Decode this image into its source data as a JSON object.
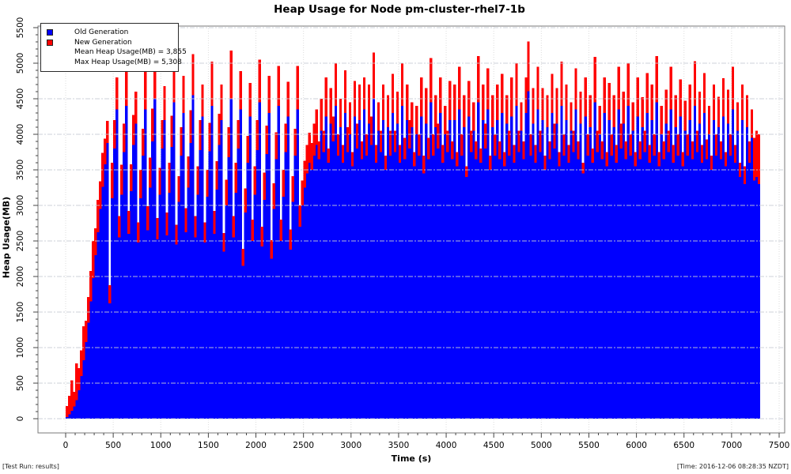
{
  "title": "Heap Usage for Node pm-cluster-rhel7-1b",
  "footer": {
    "left": "[Test Run: results]",
    "right": "[Time: 2016-12-06 08:28:35 NZDT]"
  },
  "legend": {
    "items": [
      {
        "label": "Old Generation",
        "color": "#0000ff"
      },
      {
        "label": "New Generation",
        "color": "#ff0000"
      }
    ],
    "stats": [
      "Mean Heap Usage(MB) = 3,855",
      "Max Heap Usage(MB) = 5,308"
    ]
  },
  "chart_data": {
    "type": "bar",
    "stacked": true,
    "title": "Heap Usage for Node pm-cluster-rhel7-1b",
    "xlabel": "Time (s)",
    "ylabel": "Heap Usage(MB)",
    "xlim": [
      0,
      7500
    ],
    "ylim": [
      0,
      5500
    ],
    "x_tick_major": 500,
    "x_tick_minor": 100,
    "y_tick_major": 500,
    "y_tick_minor": 100,
    "grid": true,
    "legend_position": "top-left",
    "mean_heap_mb": 3855,
    "max_heap_mb": 5308,
    "x_start": 0,
    "x_step": 25,
    "series": [
      {
        "name": "Old Generation",
        "color": "#0000ff",
        "values": [
          20,
          60,
          110,
          170,
          260,
          400,
          600,
          820,
          1080,
          1350,
          1650,
          1980,
          2300,
          2620,
          2950,
          3260,
          3580,
          3880,
          1620,
          3100,
          3800,
          4350,
          2550,
          3150,
          3750,
          4400,
          2600,
          3200,
          3850,
          4150,
          2480,
          3100,
          3700,
          4350,
          2650,
          3250,
          3900,
          4500,
          2520,
          3150,
          3800,
          4200,
          2580,
          3180,
          3820,
          4450,
          2450,
          3050,
          3700,
          4300,
          2620,
          3250,
          3880,
          4550,
          2550,
          3150,
          3780,
          4250,
          2480,
          3120,
          3760,
          4400,
          2600,
          3220,
          3850,
          4200,
          2350,
          3000,
          3680,
          4500,
          2550,
          3180,
          3800,
          4350,
          2150,
          2900,
          3600,
          4250,
          2500,
          3150,
          3780,
          4450,
          2420,
          3080,
          3720,
          4300,
          2250,
          2950,
          3650,
          4400,
          2500,
          3120,
          3750,
          4250,
          2380,
          3050,
          3700,
          4350,
          2700,
          3000,
          3250,
          3450,
          3600,
          3500,
          3700,
          3850,
          3650,
          4050,
          3750,
          4250,
          3600,
          4150,
          3900,
          4400,
          3700,
          4100,
          3600,
          4300,
          3750,
          4000,
          3550,
          4250,
          3800,
          4200,
          3650,
          4350,
          3700,
          4150,
          3850,
          4500,
          3600,
          4050,
          3750,
          4200,
          3500,
          4100,
          3700,
          4300,
          3750,
          4150,
          3600,
          4400,
          3650,
          4200,
          3800,
          4100,
          3550,
          4000,
          3700,
          4250,
          3450,
          4150,
          3650,
          4450,
          3700,
          4100,
          3800,
          4300,
          3600,
          4000,
          3750,
          4200,
          3650,
          4200,
          3550,
          4350,
          3700,
          4100,
          3400,
          4250,
          3750,
          4050,
          3650,
          4450,
          3600,
          4200,
          3800,
          4350,
          3500,
          4100,
          3700,
          4200,
          3650,
          4300,
          3550,
          4150,
          3700,
          4250,
          3600,
          4400,
          3750,
          4050,
          3650,
          4300,
          4608,
          3700,
          4150,
          3600,
          4350,
          3750,
          4200,
          3500,
          4100,
          3650,
          4300,
          3800,
          4150,
          3550,
          4400,
          3700,
          4200,
          3600,
          4050,
          3750,
          4350,
          3650,
          4150,
          3450,
          4250,
          3700,
          4100,
          3600,
          4450,
          3750,
          4000,
          3650,
          4300,
          3550,
          4200,
          3700,
          4100,
          3600,
          4350,
          3800,
          4150,
          3650,
          4400,
          3700,
          4050,
          3550,
          4250,
          3650,
          4100,
          3750,
          4300,
          3600,
          4200,
          3700,
          4450,
          3550,
          4000,
          3650,
          4150,
          3750,
          4350,
          3600,
          4100,
          3700,
          4250,
          3550,
          4050,
          3700,
          4200,
          3650,
          4400,
          3750,
          4150,
          3600,
          4300,
          3650,
          4000,
          3500,
          4200,
          3700,
          4100,
          3650,
          4250,
          3550,
          4150,
          3700,
          4350,
          3600,
          4050,
          3400,
          4200,
          3300,
          4100,
          3600,
          3950,
          3350,
          3400,
          3300
        ]
      },
      {
        "name": "New Generation",
        "color": "#ff0000",
        "values": [
          160,
          260,
          430,
          210,
          520,
          310,
          360,
          480,
          300,
          360,
          430,
          520,
          380,
          460,
          390,
          480,
          360,
          310,
          260,
          500,
          400,
          450,
          300,
          420,
          400,
          600,
          320,
          380,
          420,
          450,
          280,
          400,
          380,
          700,
          340,
          420,
          460,
          550,
          300,
          380,
          400,
          480,
          320,
          420,
          440,
          650,
          280,
          360,
          400,
          520,
          340,
          440,
          460,
          580,
          300,
          400,
          420,
          450,
          280,
          380,
          400,
          620,
          320,
          400,
          440,
          500,
          260,
          360,
          420,
          680,
          300,
          420,
          400,
          540,
          240,
          340,
          380,
          470,
          300,
          400,
          420,
          600,
          280,
          380,
          400,
          520,
          260,
          360,
          380,
          560,
          300,
          380,
          400,
          490,
          280,
          360,
          380,
          610,
          300,
          350,
          380,
          400,
          420,
          380,
          450,
          500,
          250,
          450,
          300,
          550,
          200,
          500,
          350,
          600,
          300,
          400,
          250,
          600,
          350,
          450,
          200,
          500,
          350,
          500,
          250,
          450,
          300,
          550,
          400,
          650,
          250,
          400,
          300,
          500,
          200,
          450,
          350,
          550,
          300,
          450,
          250,
          600,
          300,
          500,
          400,
          350,
          200,
          400,
          300,
          550,
          250,
          500,
          300,
          620,
          300,
          450,
          350,
          500,
          250,
          400,
          300,
          550,
          250,
          500,
          200,
          600,
          300,
          450,
          150,
          500,
          300,
          400,
          250,
          650,
          200,
          500,
          350,
          580,
          200,
          450,
          300,
          500,
          250,
          550,
          200,
          400,
          350,
          550,
          250,
          600,
          300,
          400,
          250,
          500,
          700,
          300,
          500,
          250,
          600,
          300,
          450,
          200,
          450,
          250,
          550,
          350,
          500,
          200,
          620,
          300,
          500,
          250,
          400,
          300,
          580,
          250,
          450,
          150,
          550,
          300,
          450,
          200,
          640,
          300,
          400,
          250,
          500,
          200,
          520,
          300,
          450,
          250,
          600,
          350,
          450,
          250,
          600,
          300,
          400,
          200,
          550,
          250,
          420,
          300,
          560,
          250,
          500,
          300,
          650,
          200,
          400,
          250,
          480,
          300,
          600,
          250,
          450,
          300,
          520,
          200,
          420,
          300,
          500,
          250,
          630,
          300,
          450,
          250,
          560,
          280,
          400,
          200,
          500,
          300,
          430,
          250,
          540,
          200,
          480,
          300,
          600,
          250,
          400,
          200,
          500,
          250,
          450,
          300,
          400,
          600,
          650,
          700
        ]
      }
    ]
  }
}
